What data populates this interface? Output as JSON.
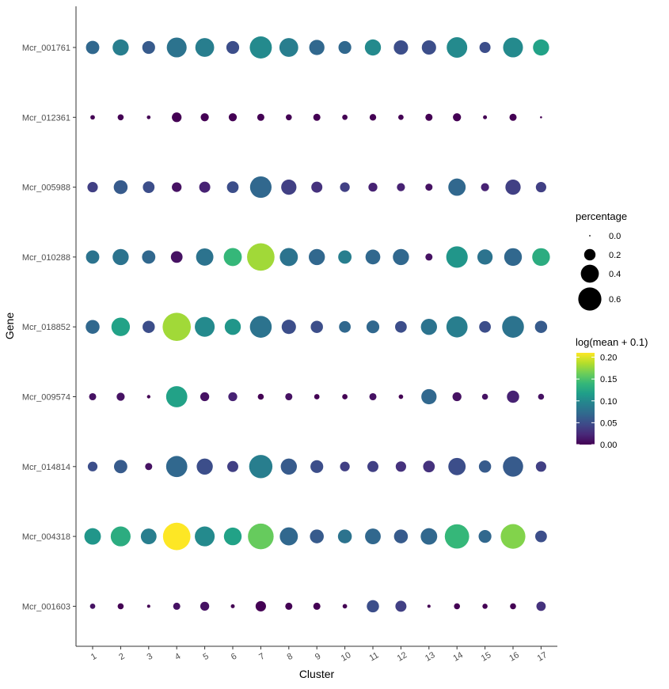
{
  "chart_data": {
    "type": "scatter",
    "subtype": "dot-plot",
    "xlabel": "Cluster",
    "ylabel": "Gene",
    "clusters": [
      "1",
      "2",
      "3",
      "4",
      "5",
      "6",
      "7",
      "8",
      "9",
      "10",
      "11",
      "12",
      "13",
      "14",
      "15",
      "16",
      "17"
    ],
    "genes": [
      "Mcr_001761",
      "Mcr_012361",
      "Mcr_005988",
      "Mcr_010288",
      "Mcr_018852",
      "Mcr_009574",
      "Mcr_014814",
      "Mcr_004318",
      "Mcr_001603"
    ],
    "percentage": [
      [
        0.12,
        0.18,
        0.11,
        0.28,
        0.25,
        0.11,
        0.35,
        0.25,
        0.16,
        0.11,
        0.18,
        0.14,
        0.14,
        0.3,
        0.08,
        0.28,
        0.18
      ],
      [
        0.01,
        0.02,
        0.006,
        0.06,
        0.04,
        0.04,
        0.03,
        0.02,
        0.03,
        0.015,
        0.025,
        0.015,
        0.03,
        0.04,
        0.007,
        0.03,
        0.001
      ],
      [
        0.07,
        0.13,
        0.09,
        0.06,
        0.08,
        0.09,
        0.33,
        0.16,
        0.08,
        0.06,
        0.05,
        0.04,
        0.03,
        0.21,
        0.04,
        0.16,
        0.07
      ],
      [
        0.12,
        0.18,
        0.12,
        0.09,
        0.21,
        0.23,
        0.55,
        0.23,
        0.18,
        0.12,
        0.15,
        0.18,
        0.03,
        0.33,
        0.16,
        0.22,
        0.22
      ],
      [
        0.13,
        0.24,
        0.1,
        0.58,
        0.28,
        0.18,
        0.34,
        0.14,
        0.1,
        0.09,
        0.11,
        0.09,
        0.18,
        0.32,
        0.09,
        0.34,
        0.1
      ],
      [
        0.03,
        0.04,
        0.005,
        0.32,
        0.05,
        0.05,
        0.02,
        0.03,
        0.015,
        0.015,
        0.03,
        0.01,
        0.16,
        0.05,
        0.02,
        0.1,
        0.02
      ],
      [
        0.06,
        0.12,
        0.03,
        0.32,
        0.18,
        0.08,
        0.39,
        0.18,
        0.11,
        0.06,
        0.08,
        0.07,
        0.09,
        0.21,
        0.1,
        0.29,
        0.07
      ],
      [
        0.19,
        0.28,
        0.17,
        0.55,
        0.28,
        0.22,
        0.48,
        0.23,
        0.13,
        0.13,
        0.17,
        0.13,
        0.19,
        0.43,
        0.11,
        0.44,
        0.09
      ],
      [
        0.015,
        0.02,
        0.004,
        0.03,
        0.05,
        0.007,
        0.07,
        0.03,
        0.03,
        0.01,
        0.1,
        0.08,
        0.004,
        0.02,
        0.014,
        0.02,
        0.055
      ]
    ],
    "log_mean": [
      [
        0.07,
        0.09,
        0.06,
        0.08,
        0.09,
        0.05,
        0.1,
        0.09,
        0.07,
        0.07,
        0.1,
        0.05,
        0.05,
        0.1,
        0.05,
        0.1,
        0.12
      ],
      [
        0.0,
        0.0,
        0.0,
        0.0,
        0.0,
        0.0,
        0.0,
        0.0,
        0.0,
        0.0,
        0.0,
        0.0,
        0.0,
        0.0,
        0.0,
        0.0,
        0.0
      ],
      [
        0.04,
        0.06,
        0.05,
        0.01,
        0.02,
        0.05,
        0.07,
        0.04,
        0.03,
        0.04,
        0.02,
        0.02,
        0.01,
        0.07,
        0.02,
        0.04,
        0.04
      ],
      [
        0.08,
        0.08,
        0.07,
        0.01,
        0.08,
        0.14,
        0.18,
        0.08,
        0.07,
        0.09,
        0.07,
        0.07,
        0.01,
        0.11,
        0.08,
        0.07,
        0.13
      ],
      [
        0.07,
        0.12,
        0.05,
        0.18,
        0.1,
        0.11,
        0.08,
        0.05,
        0.05,
        0.07,
        0.07,
        0.05,
        0.08,
        0.09,
        0.05,
        0.08,
        0.06
      ],
      [
        0.01,
        0.01,
        0.0,
        0.12,
        0.01,
        0.02,
        0.0,
        0.01,
        0.0,
        0.0,
        0.01,
        0.0,
        0.07,
        0.01,
        0.01,
        0.02,
        0.01
      ],
      [
        0.05,
        0.06,
        0.01,
        0.07,
        0.05,
        0.04,
        0.09,
        0.06,
        0.05,
        0.04,
        0.04,
        0.03,
        0.03,
        0.05,
        0.06,
        0.06,
        0.04
      ],
      [
        0.11,
        0.13,
        0.09,
        0.21,
        0.1,
        0.12,
        0.16,
        0.07,
        0.06,
        0.08,
        0.07,
        0.06,
        0.07,
        0.14,
        0.07,
        0.17,
        0.05
      ],
      [
        0.01,
        0.0,
        0.0,
        0.01,
        0.01,
        0.0,
        0.0,
        0.0,
        0.0,
        0.0,
        0.05,
        0.04,
        0.0,
        0.0,
        0.0,
        0.0,
        0.03
      ]
    ],
    "size_legend": {
      "title": "percentage",
      "breaks": [
        0.0,
        0.2,
        0.4,
        0.6
      ],
      "labels": [
        "0.0",
        "0.2",
        "0.4",
        "0.6"
      ]
    },
    "color_legend": {
      "title": "log(mean + 0.1)",
      "breaks": [
        0.0,
        0.05,
        0.1,
        0.15,
        0.2
      ],
      "labels": [
        "0.00",
        "0.05",
        "0.10",
        "0.15",
        "0.20"
      ],
      "range": [
        0.0,
        0.21
      ],
      "colormap": "viridis"
    },
    "colors": {
      "viridis_stops": [
        "#440154",
        "#482878",
        "#3e4a89",
        "#31688e",
        "#26828e",
        "#1f9e89",
        "#35b779",
        "#6ece58",
        "#b5de2b",
        "#fde725"
      ],
      "axis": "#333333",
      "tick_text": "#4d4d4d"
    },
    "grid": false,
    "legend_position": "right"
  }
}
